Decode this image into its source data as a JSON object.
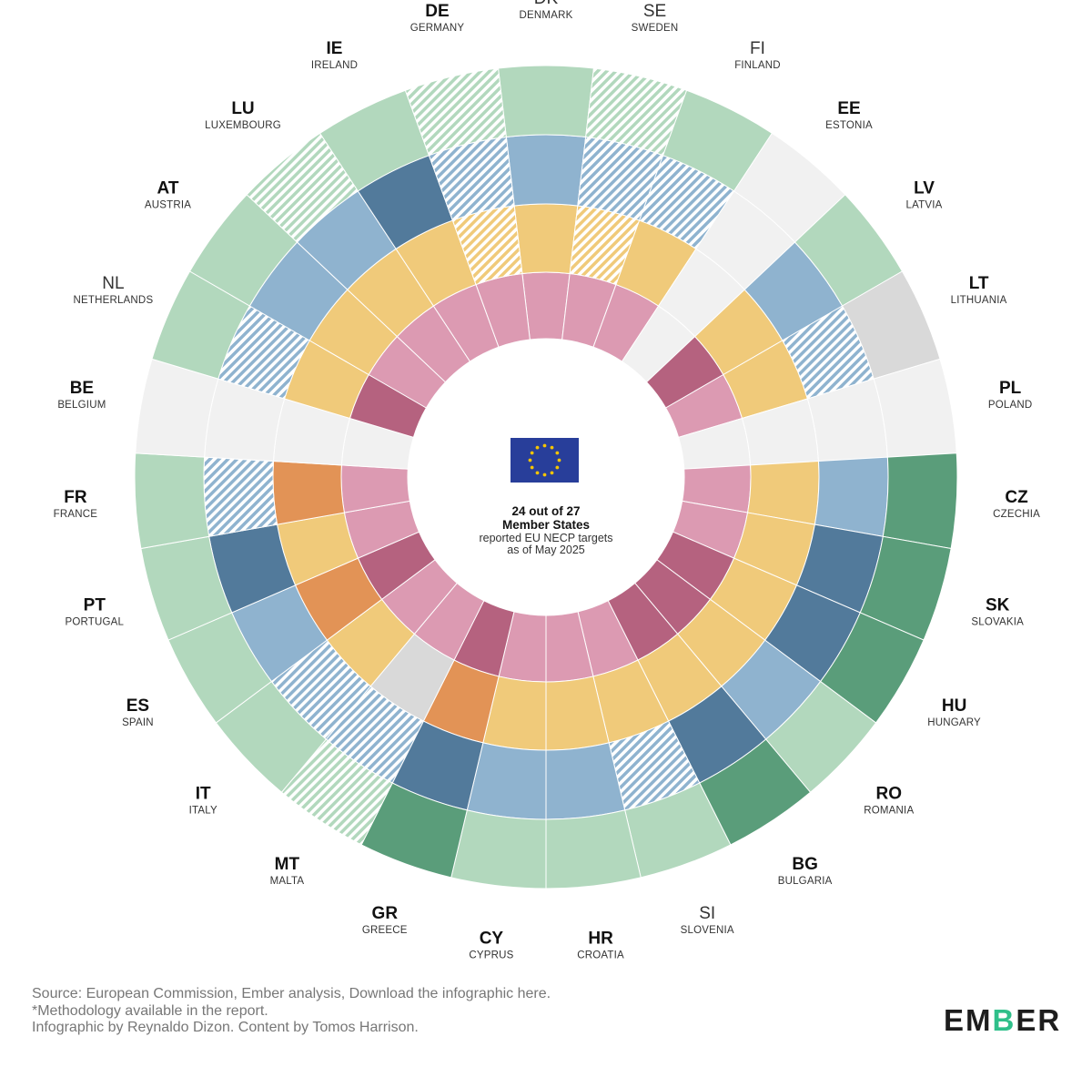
{
  "chart_data": {
    "type": "radial-heatmap",
    "center": {
      "headline_line1": "24 out of 27",
      "headline_line2": "Member States",
      "sub_line1": "reported EU NECP targets",
      "sub_line2": "as of May 2025"
    },
    "ring_order": [
      "inner",
      "second",
      "third",
      "outer"
    ],
    "colors": {
      "pink": "#dc9ab2",
      "maroon": "#b5627f",
      "yellow": "#f0ca7a",
      "orange": "#e29356",
      "lightblue": "#8fb3cf",
      "darkblue": "#527a9b",
      "lightgreen": "#b2d8bd",
      "darkgreen": "#5a9d7a",
      "grey": "#d9d9d9",
      "empty": "#f1f1f1"
    },
    "countries": [
      {
        "code": "DK",
        "name": "DENMARK",
        "bold": false,
        "rings": [
          "pink",
          "yellow",
          "lightblue",
          "lightgreen"
        ]
      },
      {
        "code": "SE",
        "name": "SWEDEN",
        "bold": false,
        "rings": [
          "pink",
          "yellow-hatch",
          "lightblue-hatch",
          "lightgreen-hatch"
        ]
      },
      {
        "code": "FI",
        "name": "FINLAND",
        "bold": false,
        "rings": [
          "pink",
          "yellow",
          "lightblue-hatch",
          "lightgreen"
        ]
      },
      {
        "code": "EE",
        "name": "ESTONIA",
        "bold": true,
        "rings": [
          "empty",
          "empty",
          "empty",
          "empty"
        ]
      },
      {
        "code": "LV",
        "name": "LATVIA",
        "bold": true,
        "rings": [
          "maroon",
          "yellow",
          "lightblue",
          "lightgreen"
        ]
      },
      {
        "code": "LT",
        "name": "LITHUANIA",
        "bold": true,
        "rings": [
          "pink",
          "yellow",
          "lightblue-hatch",
          "grey"
        ]
      },
      {
        "code": "PL",
        "name": "POLAND",
        "bold": true,
        "rings": [
          "empty",
          "empty",
          "empty",
          "empty"
        ]
      },
      {
        "code": "CZ",
        "name": "CZECHIA",
        "bold": true,
        "rings": [
          "pink",
          "yellow",
          "lightblue",
          "darkgreen"
        ]
      },
      {
        "code": "SK",
        "name": "SLOVAKIA",
        "bold": true,
        "rings": [
          "pink",
          "yellow",
          "darkblue",
          "darkgreen"
        ]
      },
      {
        "code": "HU",
        "name": "HUNGARY",
        "bold": true,
        "rings": [
          "maroon",
          "yellow",
          "darkblue",
          "darkgreen"
        ]
      },
      {
        "code": "RO",
        "name": "ROMANIA",
        "bold": true,
        "rings": [
          "maroon",
          "yellow",
          "lightblue",
          "lightgreen"
        ]
      },
      {
        "code": "BG",
        "name": "BULGARIA",
        "bold": true,
        "rings": [
          "maroon",
          "yellow",
          "darkblue",
          "darkgreen"
        ]
      },
      {
        "code": "SI",
        "name": "SLOVENIA",
        "bold": false,
        "rings": [
          "pink",
          "yellow",
          "lightblue-hatch",
          "lightgreen"
        ]
      },
      {
        "code": "HR",
        "name": "CROATIA",
        "bold": true,
        "rings": [
          "pink",
          "yellow",
          "lightblue",
          "lightgreen"
        ]
      },
      {
        "code": "CY",
        "name": "CYPRUS",
        "bold": true,
        "rings": [
          "pink",
          "yellow",
          "lightblue",
          "lightgreen"
        ]
      },
      {
        "code": "GR",
        "name": "GREECE",
        "bold": true,
        "rings": [
          "maroon",
          "orange",
          "darkblue",
          "darkgreen"
        ]
      },
      {
        "code": "MT",
        "name": "MALTA",
        "bold": true,
        "rings": [
          "pink",
          "grey",
          "lightblue-hatch",
          "lightgreen-hatch"
        ]
      },
      {
        "code": "IT",
        "name": "ITALY",
        "bold": true,
        "rings": [
          "pink",
          "yellow",
          "lightblue-hatch",
          "lightgreen"
        ]
      },
      {
        "code": "ES",
        "name": "SPAIN",
        "bold": true,
        "rings": [
          "maroon",
          "orange",
          "lightblue",
          "lightgreen"
        ]
      },
      {
        "code": "PT",
        "name": "PORTUGAL",
        "bold": true,
        "rings": [
          "pink",
          "yellow",
          "darkblue",
          "lightgreen"
        ]
      },
      {
        "code": "FR",
        "name": "FRANCE",
        "bold": true,
        "rings": [
          "pink",
          "orange",
          "lightblue-hatch",
          "lightgreen"
        ]
      },
      {
        "code": "BE",
        "name": "BELGIUM",
        "bold": true,
        "rings": [
          "empty",
          "empty",
          "empty",
          "empty"
        ]
      },
      {
        "code": "NL",
        "name": "NETHERLANDS",
        "bold": false,
        "rings": [
          "maroon",
          "yellow",
          "lightblue-hatch",
          "lightgreen"
        ]
      },
      {
        "code": "AT",
        "name": "AUSTRIA",
        "bold": true,
        "rings": [
          "pink",
          "yellow",
          "lightblue",
          "lightgreen"
        ]
      },
      {
        "code": "LU",
        "name": "LUXEMBOURG",
        "bold": true,
        "rings": [
          "pink",
          "yellow",
          "lightblue",
          "lightgreen-hatch"
        ]
      },
      {
        "code": "IE",
        "name": "IRELAND",
        "bold": true,
        "rings": [
          "pink",
          "yellow",
          "darkblue",
          "lightgreen"
        ]
      },
      {
        "code": "DE",
        "name": "GERMANY",
        "bold": true,
        "rings": [
          "pink",
          "yellow-hatch",
          "lightblue-hatch",
          "lightgreen-hatch"
        ]
      }
    ]
  },
  "footer": {
    "line1": "Source: European Commission, Ember analysis, Download the infographic here.",
    "line2": "*Methodology available in the report.",
    "line3": "Infographic by Reynaldo Dizon. Content by Tomos Harrison."
  },
  "logo": {
    "text": "EMBER",
    "accent": "#2fbf8a"
  }
}
